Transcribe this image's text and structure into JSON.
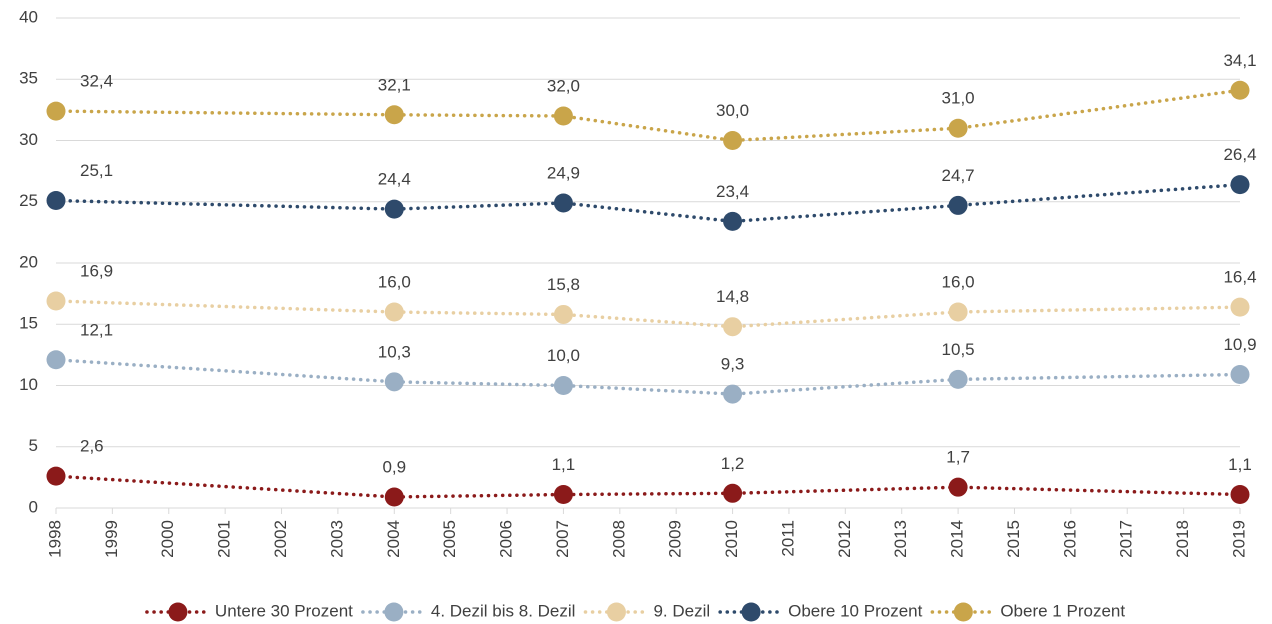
{
  "chart_data": {
    "type": "line",
    "x": [
      1998,
      2004,
      2007,
      2010,
      2014,
      2019
    ],
    "xlim": [
      1998,
      2019
    ],
    "xticks": [
      1998,
      1999,
      2000,
      2001,
      2002,
      2003,
      2004,
      2005,
      2006,
      2007,
      2008,
      2009,
      2010,
      2011,
      2012,
      2013,
      2014,
      2015,
      2016,
      2017,
      2018,
      2019
    ],
    "ylim": [
      0,
      40
    ],
    "yticks": [
      0,
      5,
      10,
      15,
      20,
      25,
      30,
      35,
      40
    ],
    "grid": true,
    "legend": "bottom",
    "series": [
      {
        "name": "Untere 30 Prozent",
        "color": "#8b1a1a",
        "values": [
          2.6,
          0.9,
          1.1,
          1.2,
          1.7,
          1.1
        ],
        "value_labels": [
          "2,6",
          "0,9",
          "1,1",
          "1,2",
          "1,7",
          "1,1"
        ]
      },
      {
        "name": "4. Dezil bis 8. Dezil",
        "color": "#9aafc4",
        "values": [
          12.1,
          10.3,
          10.0,
          9.3,
          10.5,
          10.9
        ],
        "value_labels": [
          "12,1",
          "10,3",
          "10,0",
          "9,3",
          "10,5",
          "10,9"
        ]
      },
      {
        "name": "9. Dezil",
        "color": "#e8cfa2",
        "values": [
          16.9,
          16.0,
          15.8,
          14.8,
          16.0,
          16.4
        ],
        "value_labels": [
          "16,9",
          "16,0",
          "15,8",
          "14,8",
          "16,0",
          "16,4"
        ]
      },
      {
        "name": "Obere 10 Prozent",
        "color": "#2e4a6b",
        "values": [
          25.1,
          24.4,
          24.9,
          23.4,
          24.7,
          26.4
        ],
        "value_labels": [
          "25,1",
          "24,4",
          "24,9",
          "23,4",
          "24,7",
          "26,4"
        ]
      },
      {
        "name": "Obere 1 Prozent",
        "color": "#c9a54a",
        "values": [
          32.4,
          32.1,
          32.0,
          30.0,
          31.0,
          34.1
        ],
        "value_labels": [
          "32,4",
          "32,1",
          "32,0",
          "30,0",
          "31,0",
          "34,1"
        ]
      }
    ]
  }
}
